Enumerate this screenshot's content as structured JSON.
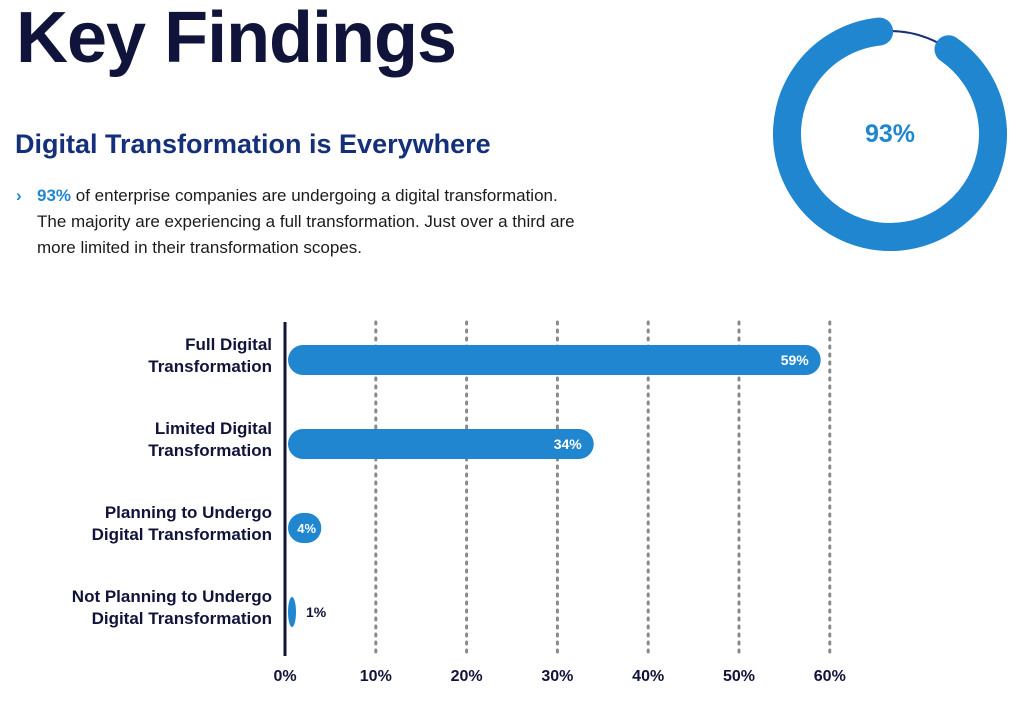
{
  "header": {
    "title": "Key Findings",
    "subtitle": "Digital Transformation is Everywhere"
  },
  "finding": {
    "bullet_icon": "chevron-right-icon",
    "highlight": "93%",
    "text_line1": " of enterprise companies are undergoing a digital transformation.",
    "text_line2": "The majority are experiencing a full transformation. Just over a third are",
    "text_line3": "more limited in their transformation scopes."
  },
  "donut": {
    "label": "93%",
    "value": 0.93
  },
  "colors": {
    "accent": "#1f86cf",
    "title": "#10143a",
    "subtitle": "#15307a",
    "donut_track": "#15307a"
  },
  "chart_data": {
    "type": "bar",
    "orientation": "horizontal",
    "categories": [
      [
        "Full Digital",
        "Transformation"
      ],
      [
        "Limited Digital",
        "Transformation"
      ],
      [
        "Planning to Undergo",
        "Digital Transformation"
      ],
      [
        "Not Planning to Undergo",
        "Digital Transformation"
      ]
    ],
    "values": [
      59,
      34,
      4,
      1
    ],
    "value_labels": [
      "59%",
      "34%",
      "4%",
      "1%"
    ],
    "x_ticks": [
      0,
      10,
      20,
      30,
      40,
      50,
      60
    ],
    "x_tick_labels": [
      "0%",
      "10%",
      "20%",
      "30%",
      "40%",
      "50%",
      "60%"
    ],
    "xlim": [
      0,
      60
    ],
    "grid": "dotted-vertical",
    "title": "",
    "xlabel": "",
    "ylabel": ""
  }
}
